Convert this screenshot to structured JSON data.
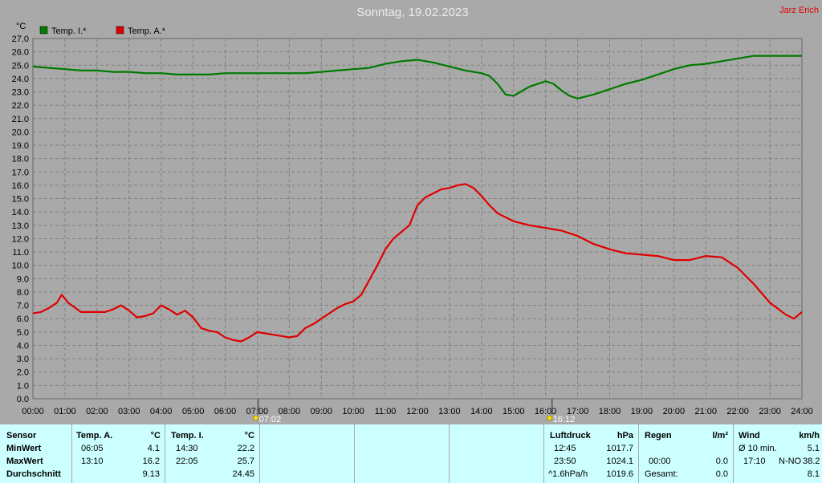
{
  "title": "Sonntag, 19.02.2023",
  "author": "Jarz Erich",
  "colors": {
    "background": "#a9a9a9",
    "grid": "#808080",
    "temp_i": "#007a00",
    "temp_a": "#e00000",
    "table_bg": "#ccffff"
  },
  "chart_data": {
    "type": "line",
    "title": "Sonntag, 19.02.2023",
    "ylabel": "°C",
    "ylim": [
      0,
      27
    ],
    "yticks": [
      "0.0",
      "1.0",
      "2.0",
      "3.0",
      "4.0",
      "5.0",
      "6.0",
      "7.0",
      "8.0",
      "9.0",
      "10.0",
      "11.0",
      "12.0",
      "13.0",
      "14.0",
      "15.0",
      "16.0",
      "17.0",
      "18.0",
      "19.0",
      "20.0",
      "21.0",
      "22.0",
      "23.0",
      "24.0",
      "25.0",
      "26.0",
      "27.0"
    ],
    "xlim": [
      0,
      24
    ],
    "xticks": [
      "00:00",
      "01:00",
      "02:00",
      "03:00",
      "04:00",
      "05:00",
      "06:00",
      "07:00",
      "08:00",
      "09:00",
      "10:00",
      "11:00",
      "12:00",
      "13:00",
      "14:00",
      "15:00",
      "16:00",
      "17:00",
      "18:00",
      "19:00",
      "20:00",
      "21:00",
      "22:00",
      "23:00",
      "24:00"
    ],
    "grid": true,
    "legend_position": "top-left",
    "markers": [
      {
        "label": "07:02",
        "x": 7.03,
        "icon": "sunrise-icon"
      },
      {
        "label": "16:12",
        "x": 16.2,
        "icon": "sunset-icon"
      }
    ],
    "series": [
      {
        "name": "Temp. I.*",
        "color": "#007a00",
        "x": [
          0,
          0.5,
          1,
          1.5,
          2,
          2.5,
          3,
          3.5,
          4,
          4.5,
          5,
          5.5,
          6,
          6.5,
          7,
          7.5,
          8,
          8.5,
          9,
          9.5,
          10,
          10.5,
          11,
          11.5,
          12,
          12.5,
          13,
          13.5,
          14,
          14.25,
          14.5,
          14.75,
          15,
          15.5,
          16,
          16.25,
          16.5,
          16.75,
          17,
          17.5,
          18,
          18.5,
          19,
          19.5,
          20,
          20.5,
          21,
          21.5,
          22,
          22.5,
          23,
          23.5,
          24
        ],
        "y": [
          24.9,
          24.8,
          24.7,
          24.6,
          24.6,
          24.5,
          24.5,
          24.4,
          24.4,
          24.3,
          24.3,
          24.3,
          24.4,
          24.4,
          24.4,
          24.4,
          24.4,
          24.4,
          24.5,
          24.6,
          24.7,
          24.8,
          25.1,
          25.3,
          25.4,
          25.2,
          24.9,
          24.6,
          24.4,
          24.2,
          23.6,
          22.8,
          22.7,
          23.4,
          23.8,
          23.6,
          23.1,
          22.7,
          22.5,
          22.8,
          23.2,
          23.6,
          23.9,
          24.3,
          24.7,
          25.0,
          25.1,
          25.3,
          25.5,
          25.7,
          25.7,
          25.7,
          25.7
        ]
      },
      {
        "name": "Temp. A.*",
        "color": "#e00000",
        "x": [
          0,
          0.25,
          0.5,
          0.75,
          0.9,
          1.1,
          1.5,
          2,
          2.25,
          2.5,
          2.75,
          3,
          3.25,
          3.5,
          3.75,
          4,
          4.25,
          4.5,
          4.75,
          5,
          5.25,
          5.5,
          5.75,
          6,
          6.25,
          6.5,
          6.75,
          7,
          7.25,
          7.5,
          7.75,
          8,
          8.25,
          8.5,
          8.75,
          9,
          9.25,
          9.5,
          9.75,
          10,
          10.25,
          10.5,
          10.75,
          11,
          11.25,
          11.5,
          11.75,
          12,
          12.25,
          12.5,
          12.75,
          13,
          13.25,
          13.5,
          13.75,
          14,
          14.25,
          14.5,
          14.75,
          15,
          15.5,
          16,
          16.5,
          17,
          17.5,
          18,
          18.5,
          19,
          19.5,
          20,
          20.5,
          21,
          21.5,
          22,
          22.5,
          23,
          23.5,
          23.75,
          24
        ],
        "y": [
          6.4,
          6.5,
          6.8,
          7.2,
          7.8,
          7.2,
          6.5,
          6.5,
          6.5,
          6.7,
          7.0,
          6.6,
          6.1,
          6.2,
          6.4,
          7.0,
          6.7,
          6.3,
          6.6,
          6.1,
          5.3,
          5.1,
          5.0,
          4.6,
          4.4,
          4.3,
          4.6,
          5.0,
          4.9,
          4.8,
          4.7,
          4.6,
          4.7,
          5.3,
          5.6,
          6.0,
          6.4,
          6.8,
          7.1,
          7.3,
          7.8,
          8.9,
          10.0,
          11.2,
          12.0,
          12.5,
          13.0,
          14.5,
          15.1,
          15.4,
          15.7,
          15.8,
          16.0,
          16.1,
          15.8,
          15.2,
          14.5,
          13.9,
          13.6,
          13.3,
          13.0,
          12.8,
          12.6,
          12.2,
          11.6,
          11.2,
          10.9,
          10.8,
          10.7,
          10.4,
          10.4,
          10.7,
          10.6,
          9.8,
          8.6,
          7.2,
          6.3,
          6.0,
          6.5
        ]
      }
    ]
  },
  "table": {
    "sensor": {
      "header": "Sensor",
      "rows": [
        "MinWert",
        "MaxWert",
        "Durchschnitt"
      ]
    },
    "temp_a": {
      "header": "Temp. A.",
      "unit": "°C",
      "min_time": "06:05",
      "min": "4.1",
      "max_time": "13:10",
      "max": "16.2",
      "avg": "9.13"
    },
    "temp_i": {
      "header": "Temp. I.",
      "unit": "°C",
      "min_time": "14:30",
      "min": "22.2",
      "max_time": "22:05",
      "max": "25.7",
      "avg": "24.45"
    },
    "pressure": {
      "header": "Luftdruck",
      "unit": "hPa",
      "min_time": "12:45",
      "min": "1017.7",
      "max_time": "23:50",
      "max": "1024.1",
      "trend_label": "^1.6hPa/h",
      "current": "1019.6"
    },
    "rain": {
      "header": "Regen",
      "unit": "l/m²",
      "time": "00:00",
      "value": "0.0",
      "total_label": "Gesamt:",
      "total": "0.0"
    },
    "wind": {
      "header": "Wind",
      "unit": "km/h",
      "avg_label": "Ø 10 min.",
      "avg": "5.1",
      "max_time": "17:10",
      "direction": "N-NO",
      "max": "38.2",
      "day_avg": "8.1"
    }
  }
}
